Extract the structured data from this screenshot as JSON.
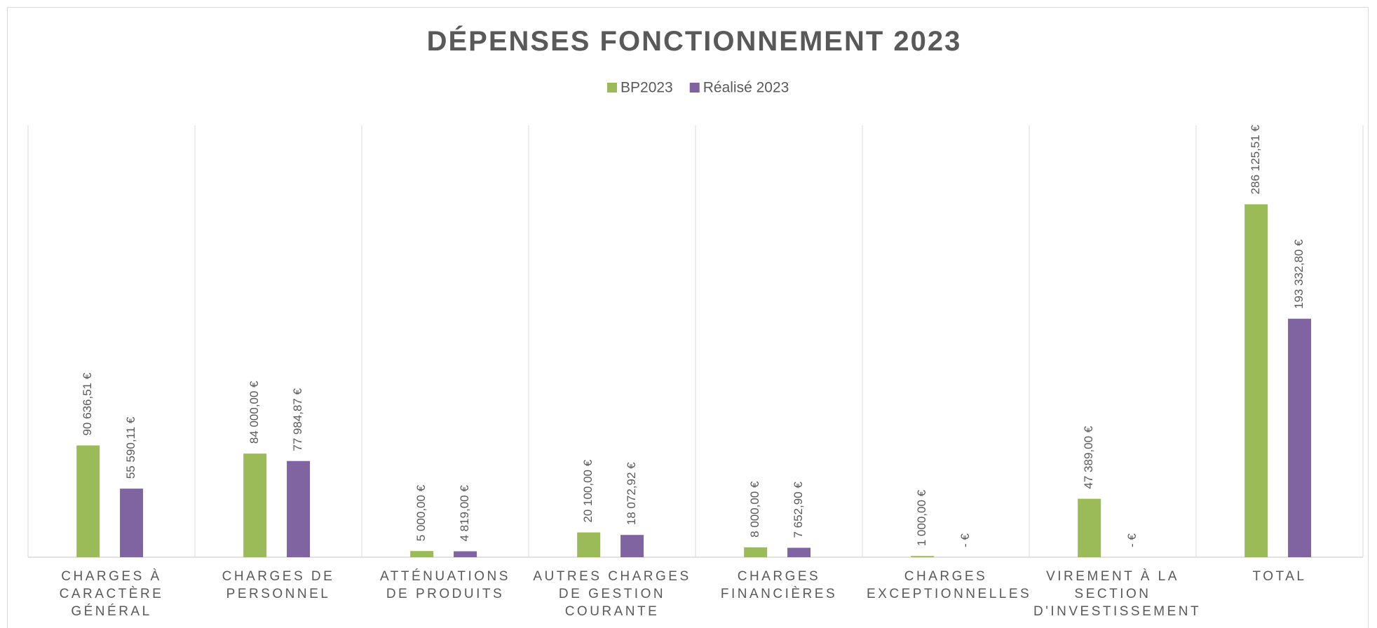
{
  "chart_data": {
    "type": "bar",
    "title": "DÉPENSES FONCTIONNEMENT 2023",
    "categories": [
      "CHARGES À CARACTÈRE GÉNÉRAL",
      "CHARGES DE PERSONNEL",
      "ATTÉNUATIONS DE PRODUITS",
      "AUTRES CHARGES DE GESTION COURANTE",
      "CHARGES FINANCIÈRES",
      "CHARGES EXCEPTIONNELLES",
      "VIREMENT À LA SECTION D'INVESTISSEMENT",
      "TOTAL"
    ],
    "series": [
      {
        "name": "BP2023",
        "color": "#9bbb59",
        "values": [
          90636.51,
          84000.0,
          5000.0,
          20100.0,
          8000.0,
          1000.0,
          47389.0,
          286125.51
        ],
        "value_labels": [
          "90 636,51 €",
          "84 000,00 €",
          "5 000,00 €",
          "20 100,00 €",
          "8 000,00 €",
          "1 000,00 €",
          "47 389,00 €",
          "286 125,51 €"
        ]
      },
      {
        "name": "Réalisé 2023",
        "color": "#8064a2",
        "values": [
          55590.11,
          77984.87,
          4819.0,
          18072.92,
          7652.9,
          0,
          0,
          193332.8
        ],
        "value_labels": [
          "55 590,11 €",
          "77 984,87 €",
          "4 819,00 €",
          "18 072,92 €",
          "7 652,90 €",
          "- €",
          "- €",
          "193 332,80 €"
        ]
      }
    ],
    "ylim": [
      0,
      350000
    ],
    "legend": "top"
  }
}
